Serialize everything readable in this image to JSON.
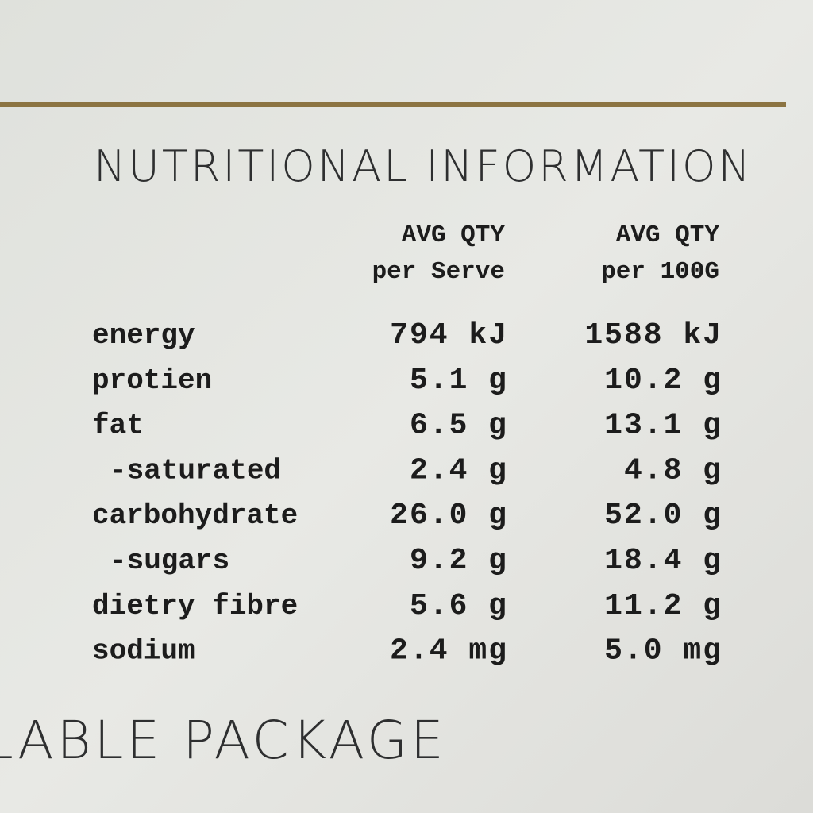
{
  "header": {
    "title": "NUTRITIONAL INFORMATION"
  },
  "table": {
    "columns": [
      {
        "line1": "AVG QTY",
        "line2": "per Serve"
      },
      {
        "line1": "AVG QTY",
        "line2": "per 100G"
      }
    ],
    "rows": [
      [
        "energy",
        "794 kJ",
        "1588 kJ"
      ],
      [
        "protien",
        "5.1 g",
        "10.2 g"
      ],
      [
        "fat",
        "6.5 g",
        "13.1 g"
      ],
      [
        "-saturated",
        "2.4 g",
        "4.8 g"
      ],
      [
        "carbohydrate",
        "26.0 g",
        "52.0 g"
      ],
      [
        "-sugars",
        "9.2 g",
        "18.4 g"
      ],
      [
        "dietry fibre",
        "5.6 g",
        "11.2 g"
      ],
      [
        "sodium",
        "2.4 mg",
        "5.0 mg"
      ]
    ]
  },
  "footer": {
    "text": "LABLE PACKAGE"
  }
}
